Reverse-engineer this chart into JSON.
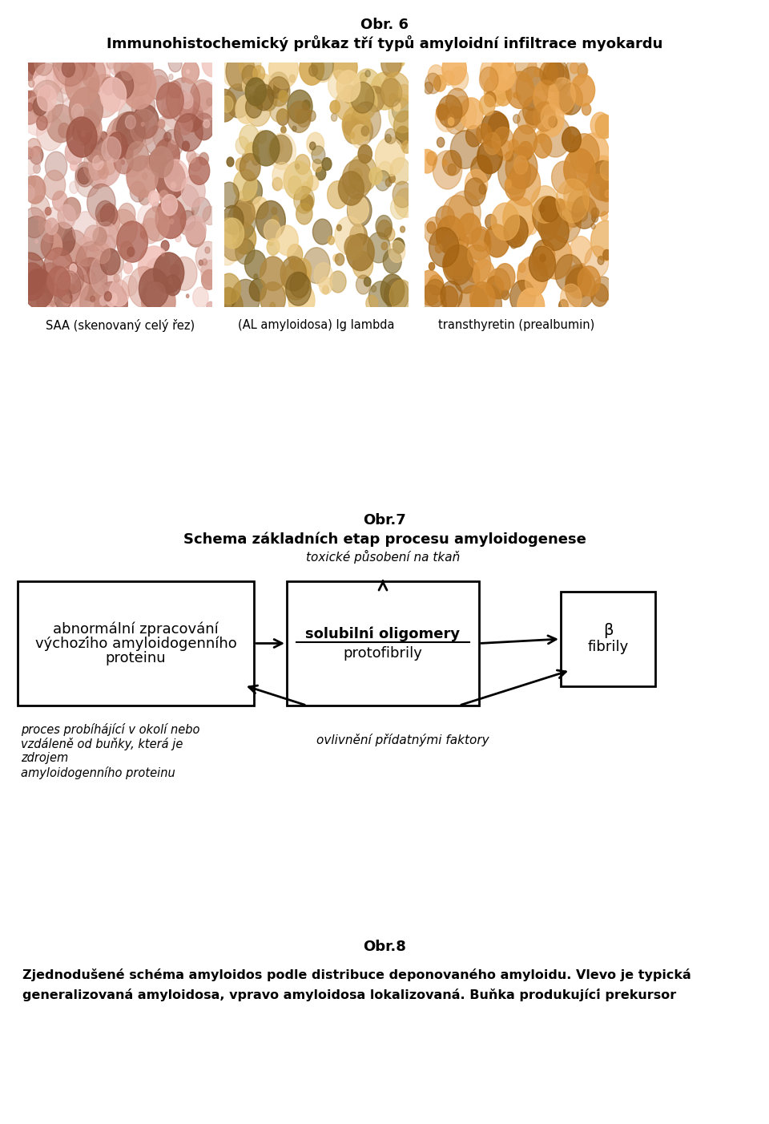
{
  "fig_width": 9.6,
  "fig_height": 14.02,
  "bg_color": "#ffffff",
  "title1": "Obr. 6",
  "subtitle1": "Immunohistochemický průkaz tří typů amyloidní infiltrace myokardu",
  "img_captions": [
    "SAA (skenovaný celý řez)",
    "(AL amyloidosa) Ig lambda",
    "transthyretin (prealbumin)"
  ],
  "title2": "Obr.7",
  "subtitle2": "Schema základních etap procesu amyloidogenese",
  "box1_line1": "abnormální zpracování",
  "box1_line2": "výchozího amyloidogenního",
  "box1_line3": "proteinu",
  "box2_line1": "solubilní oligomery",
  "box2_line2": "protofibrily",
  "box3_line1": "β",
  "box3_line2": "fibrily",
  "label_top": "toxické působení na tkaň",
  "label_bottom": "ovlivnění přídatnými faktory",
  "label_left_line1": "proces probíhájící v okolí nebo",
  "label_left_line2": "vzdáleně od buňky, která je",
  "label_left_line3": "zdrojem",
  "label_left_line4": "amyloidogenního proteinu",
  "title3": "Obr.8",
  "subtitle3_line1": "Zjednodušené schéma amyloidos podle distribuce deponovaného amyloidu. Vlevo je typická",
  "subtitle3_line2": "generalizovaná amyloidosa, vpravo amyloidosa lokalizovaná. Buňka produkující prekursor"
}
